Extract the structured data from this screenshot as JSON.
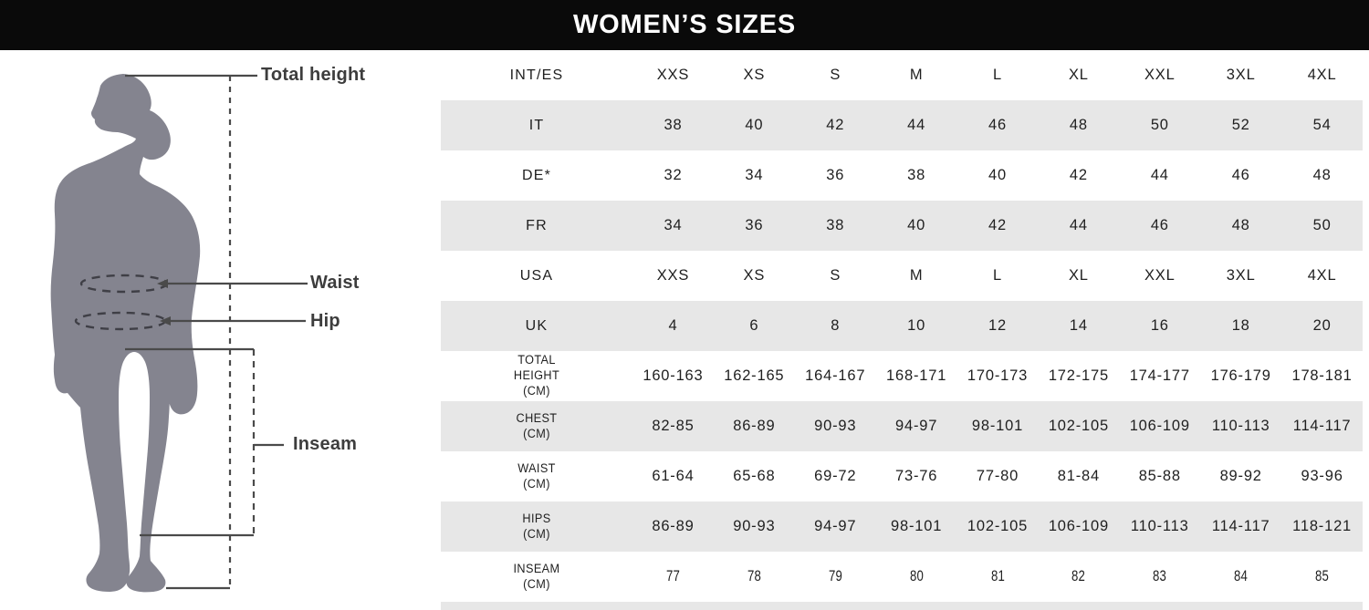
{
  "title": "WOMEN’S SIZES",
  "colors": {
    "header_bg": "#0a0a0a",
    "header_text": "#ffffff",
    "shaded_row": "#e7e7e7",
    "silhouette": "#84848f",
    "measure_line": "#4a4a4a",
    "label_text": "#3d3d3d"
  },
  "diagram": {
    "total_height_label": "Total height",
    "waist_label": "Waist",
    "hip_label": "Hip",
    "inseam_label": "Inseam"
  },
  "table": {
    "rows": [
      {
        "label": "INT/ES",
        "shaded": false,
        "small_label": false,
        "narrow_values": false,
        "values": [
          "XXS",
          "XS",
          "S",
          "M",
          "L",
          "XL",
          "XXL",
          "3XL",
          "4XL"
        ]
      },
      {
        "label": "IT",
        "shaded": true,
        "small_label": false,
        "narrow_values": false,
        "values": [
          "38",
          "40",
          "42",
          "44",
          "46",
          "48",
          "50",
          "52",
          "54"
        ]
      },
      {
        "label": "DE*",
        "shaded": false,
        "small_label": false,
        "narrow_values": false,
        "values": [
          "32",
          "34",
          "36",
          "38",
          "40",
          "42",
          "44",
          "46",
          "48"
        ]
      },
      {
        "label": "FR",
        "shaded": true,
        "small_label": false,
        "narrow_values": false,
        "values": [
          "34",
          "36",
          "38",
          "40",
          "42",
          "44",
          "46",
          "48",
          "50"
        ]
      },
      {
        "label": "USA",
        "shaded": false,
        "small_label": false,
        "narrow_values": false,
        "values": [
          "XXS",
          "XS",
          "S",
          "M",
          "L",
          "XL",
          "XXL",
          "3XL",
          "4XL"
        ]
      },
      {
        "label": "UK",
        "shaded": true,
        "small_label": false,
        "narrow_values": false,
        "values": [
          "4",
          "6",
          "8",
          "10",
          "12",
          "14",
          "16",
          "18",
          "20"
        ]
      },
      {
        "label": "TOTAL\nHEIGHT\n(CM)",
        "shaded": false,
        "small_label": true,
        "narrow_values": false,
        "values": [
          "160-163",
          "162-165",
          "164-167",
          "168-171",
          "170-173",
          "172-175",
          "174-177",
          "176-179",
          "178-181"
        ]
      },
      {
        "label": "CHEST\n(CM)",
        "shaded": true,
        "small_label": true,
        "narrow_values": false,
        "values": [
          "82-85",
          "86-89",
          "90-93",
          "94-97",
          "98-101",
          "102-105",
          "106-109",
          "110-113",
          "114-117"
        ]
      },
      {
        "label": "WAIST\n(CM)",
        "shaded": false,
        "small_label": true,
        "narrow_values": false,
        "values": [
          "61-64",
          "65-68",
          "69-72",
          "73-76",
          "77-80",
          "81-84",
          "85-88",
          "89-92",
          "93-96"
        ]
      },
      {
        "label": "HIPS\n(CM)",
        "shaded": true,
        "small_label": true,
        "narrow_values": false,
        "values": [
          "86-89",
          "90-93",
          "94-97",
          "98-101",
          "102-105",
          "106-109",
          "110-113",
          "114-117",
          "118-121"
        ]
      },
      {
        "label": "INSEAM\n(CM)",
        "shaded": false,
        "small_label": true,
        "narrow_values": true,
        "values": [
          "77",
          "78",
          "79",
          "80",
          "81",
          "82",
          "83",
          "84",
          "85"
        ]
      }
    ]
  }
}
